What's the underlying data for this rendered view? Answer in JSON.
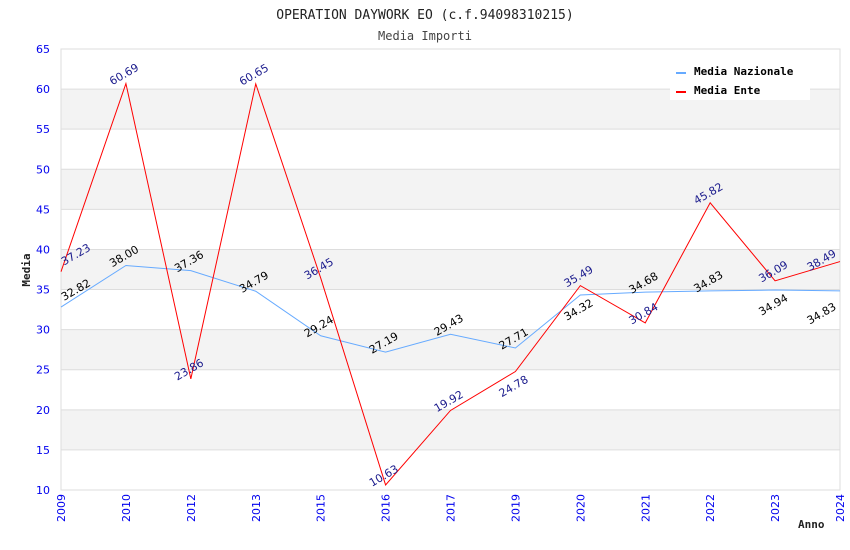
{
  "chart_data": {
    "type": "line",
    "title": "OPERATION DAYWORK EO (c.f.94098310215)",
    "subtitle": "Media Importi",
    "xlabel": "Anno",
    "ylabel": "Media",
    "ylim": [
      10,
      65
    ],
    "yticks": [
      10,
      15,
      20,
      25,
      30,
      35,
      40,
      45,
      50,
      55,
      60,
      65
    ],
    "categories": [
      "2009",
      "2010",
      "2012",
      "2013",
      "2015",
      "2016",
      "2017",
      "2019",
      "2020",
      "2021",
      "2022",
      "2023",
      "2024"
    ],
    "legend_position": "top-right",
    "series": [
      {
        "name": "Media Nazionale",
        "color": "#66aaff",
        "label_color": "#000000",
        "values": [
          32.82,
          38.0,
          37.36,
          34.79,
          29.24,
          27.19,
          29.43,
          27.71,
          34.32,
          34.68,
          34.83,
          34.94,
          34.83
        ]
      },
      {
        "name": "Media Ente",
        "color": "#ff0000",
        "label_color": "#1a1a8c",
        "values": [
          37.23,
          60.69,
          23.86,
          60.65,
          36.45,
          10.63,
          19.92,
          24.78,
          35.49,
          30.84,
          45.82,
          36.09,
          38.49
        ]
      }
    ]
  }
}
